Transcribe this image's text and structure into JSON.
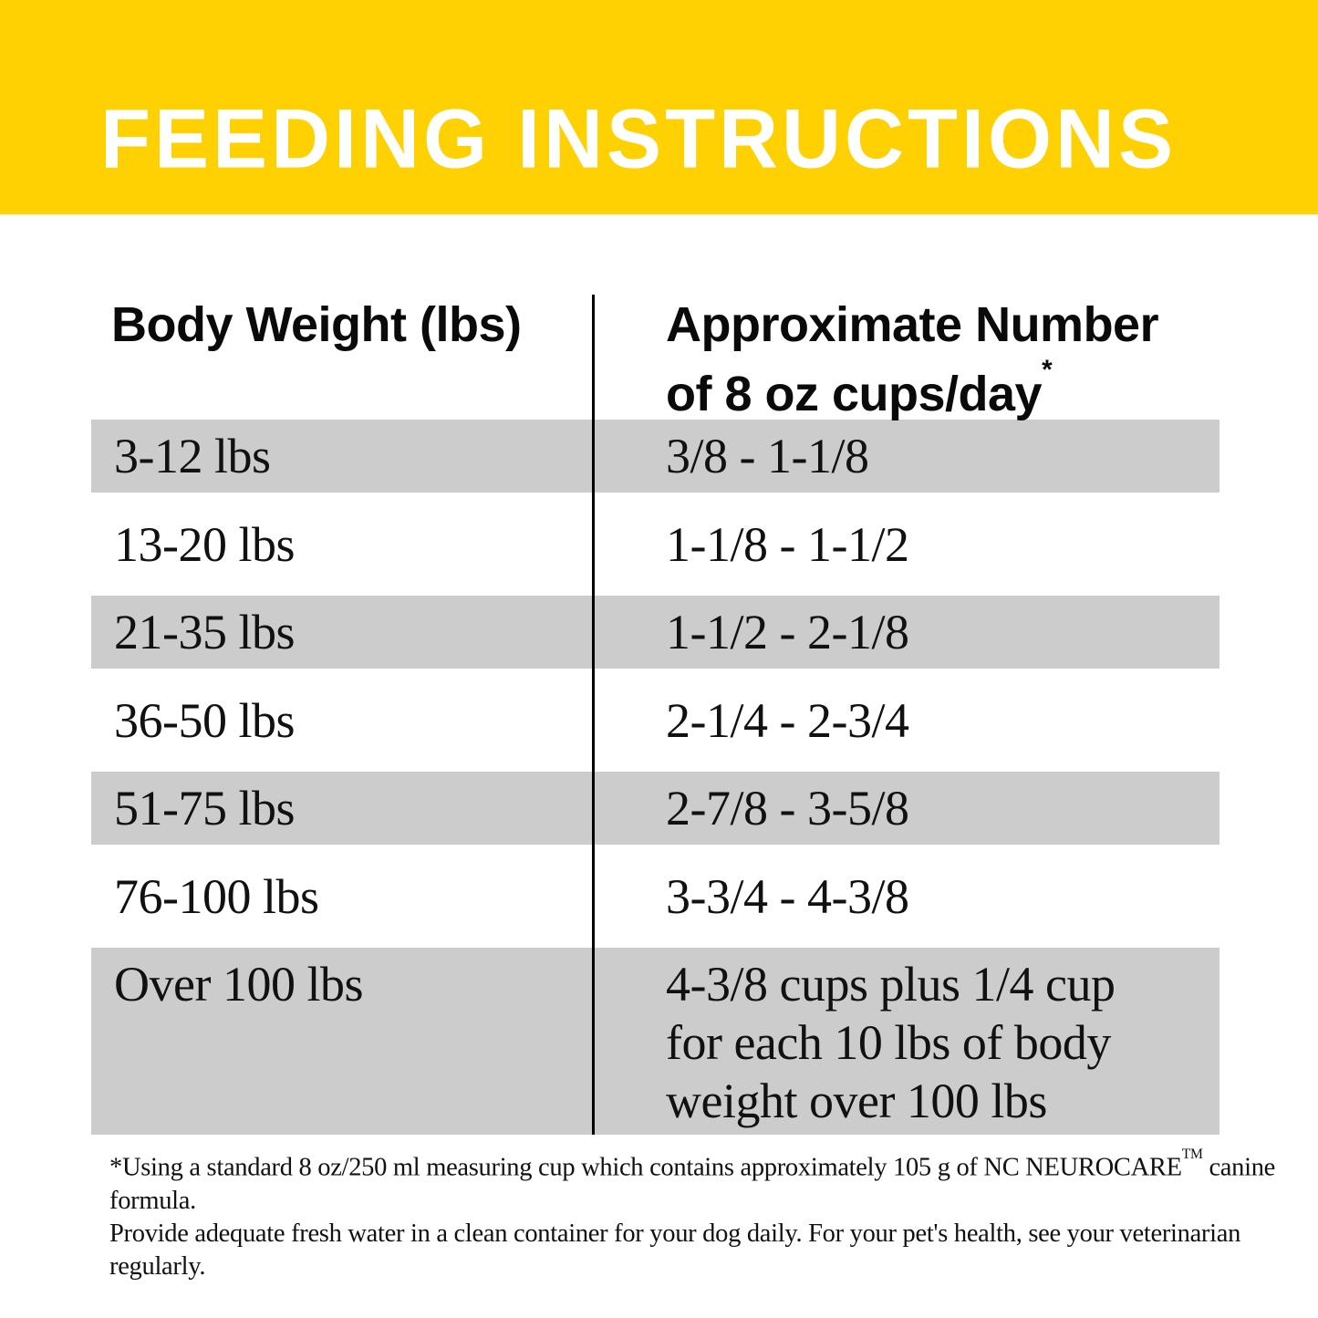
{
  "title": "FEEDING INSTRUCTIONS",
  "colors": {
    "banner_yellow": "#ffd103",
    "row_gray": "#cccccc",
    "divider_black": "#000000",
    "title_white": "#ffffff"
  },
  "table": {
    "header_left": "Body Weight (lbs)",
    "header_right_line1": "Approximate Number",
    "header_right_line2": "of 8 oz cups/day",
    "header_right_footnote_marker": "*",
    "rows": [
      {
        "weight": "3-12 lbs",
        "cups": "3/8 - 1-1/8"
      },
      {
        "weight": "13-20 lbs",
        "cups": "1-1/8 - 1-1/2"
      },
      {
        "weight": "21-35 lbs",
        "cups": "1-1/2 - 2-1/8"
      },
      {
        "weight": "36-50 lbs",
        "cups": "2-1/4 - 2-3/4"
      },
      {
        "weight": "51-75 lbs",
        "cups": "2-7/8 - 3-5/8"
      },
      {
        "weight": "76-100 lbs",
        "cups": "3-3/4 - 4-3/8"
      },
      {
        "weight": "Over 100 lbs",
        "cups": "4-3/8 cups plus 1/4 cup\nfor each 10 lbs of body\nweight over 100 lbs"
      }
    ]
  },
  "footnote": {
    "line1_pre": "*Using a standard 8 oz/250 ml measuring cup which contains approximately 105 g of NC NEUROCARE",
    "line1_sup": "TM",
    "line1_post": " canine formula.",
    "line2": "Provide adequate fresh water in a clean container for your dog daily. For your pet's health, see your veterinarian regularly."
  }
}
